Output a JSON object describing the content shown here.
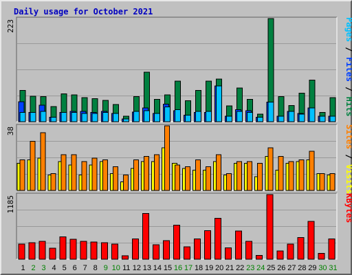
{
  "title": "Daily usage for October 2021",
  "colors": {
    "hits": "#008040",
    "files": "#0040ff",
    "pages": "#00c0ff",
    "visits": "#ffff00",
    "sites": "#ff8000",
    "kbytes": "#ff0000",
    "weekday_tick": "#000000",
    "weekend_tick": "#008000"
  },
  "chart_data": [
    {
      "type": "bar",
      "panel": "hits",
      "ymax_label": "223",
      "ylim": [
        0,
        223
      ],
      "legend": [
        {
          "text": "Pages",
          "color": "#00c0ff"
        },
        {
          "text": " / ",
          "color": "#000000"
        },
        {
          "text": "Files",
          "color": "#0040ff"
        },
        {
          "text": " / ",
          "color": "#000000"
        },
        {
          "text": "Hits",
          "color": "#008040"
        }
      ],
      "categories": [
        "1",
        "2",
        "3",
        "4",
        "5",
        "6",
        "7",
        "8",
        "9",
        "10",
        "11",
        "12",
        "13",
        "14",
        "15",
        "16",
        "17",
        "18",
        "19",
        "20",
        "21",
        "22",
        "23",
        "24",
        "25",
        "26",
        "27",
        "28",
        "29",
        "30",
        "31"
      ],
      "weekend": [
        false,
        true,
        true,
        false,
        false,
        false,
        false,
        false,
        true,
        true,
        false,
        false,
        false,
        false,
        false,
        true,
        true,
        false,
        false,
        false,
        false,
        false,
        true,
        true,
        false,
        false,
        false,
        false,
        false,
        true,
        true
      ],
      "series": [
        {
          "name": "Hits",
          "color": "#008040",
          "values": [
            68,
            55,
            54,
            33,
            60,
            58,
            52,
            50,
            46,
            37,
            12,
            54,
            107,
            48,
            58,
            88,
            45,
            68,
            88,
            92,
            34,
            73,
            48,
            16,
            223,
            54,
            35,
            62,
            90,
            20,
            52
          ]
        },
        {
          "name": "Files",
          "color": "#0040ff",
          "values": [
            43,
            20,
            36,
            10,
            20,
            22,
            22,
            20,
            22,
            18,
            6,
            21,
            30,
            18,
            38,
            24,
            14,
            20,
            20,
            77,
            12,
            26,
            24,
            10,
            42,
            12,
            22,
            18,
            30,
            12,
            12
          ]
        },
        {
          "name": "Pages",
          "color": "#00c0ff",
          "values": [
            20,
            20,
            22,
            10,
            20,
            20,
            18,
            18,
            20,
            18,
            6,
            22,
            24,
            18,
            32,
            26,
            14,
            22,
            22,
            77,
            12,
            22,
            20,
            10,
            42,
            12,
            22,
            16,
            30,
            12,
            12
          ]
        }
      ]
    },
    {
      "type": "bar",
      "panel": "visits",
      "ymax_label": "38",
      "ylim": [
        0,
        38
      ],
      "legend": [
        {
          "text": "Sites",
          "color": "#ff8000"
        },
        {
          "text": " / ",
          "color": "#000000"
        },
        {
          "text": "Visits",
          "color": "#ffff00"
        }
      ],
      "categories": [
        "1",
        "2",
        "3",
        "4",
        "5",
        "6",
        "7",
        "8",
        "9",
        "10",
        "11",
        "12",
        "13",
        "14",
        "15",
        "16",
        "17",
        "18",
        "19",
        "20",
        "21",
        "22",
        "23",
        "24",
        "25",
        "26",
        "27",
        "28",
        "29",
        "30",
        "31"
      ],
      "series": [
        {
          "name": "Visits",
          "color": "#ffff00",
          "values": [
            16,
            18,
            19,
            9,
            17,
            15,
            9,
            15,
            17,
            10,
            5,
            13,
            17,
            17,
            25,
            16,
            13,
            12,
            12,
            17,
            9,
            16,
            16,
            8,
            20,
            12,
            16,
            17,
            18,
            10,
            9
          ]
        },
        {
          "name": "Sites",
          "color": "#ff8000",
          "values": [
            18,
            29,
            34,
            10,
            21,
            21,
            17,
            19,
            18,
            14,
            9,
            18,
            20,
            21,
            38,
            15,
            14,
            18,
            14,
            21,
            10,
            17,
            17,
            16,
            25,
            20,
            17,
            18,
            23,
            10,
            10
          ]
        }
      ]
    },
    {
      "type": "bar",
      "panel": "kbytes",
      "ymax_label": "1185",
      "ylim": [
        0,
        1185
      ],
      "legend": [
        {
          "text": "KBytes",
          "color": "#ff0000"
        }
      ],
      "categories": [
        "1",
        "2",
        "3",
        "4",
        "5",
        "6",
        "7",
        "8",
        "9",
        "10",
        "11",
        "12",
        "13",
        "14",
        "15",
        "16",
        "17",
        "18",
        "19",
        "20",
        "21",
        "22",
        "23",
        "24",
        "25",
        "26",
        "27",
        "28",
        "29",
        "30",
        "31"
      ],
      "series": [
        {
          "name": "KBytes",
          "color": "#ff0000",
          "values": [
            275,
            300,
            325,
            200,
            410,
            365,
            325,
            315,
            300,
            280,
            60,
            370,
            840,
            265,
            340,
            625,
            230,
            375,
            525,
            750,
            210,
            520,
            325,
            70,
            1185,
            150,
            275,
            395,
            695,
            105,
            375
          ]
        }
      ]
    }
  ]
}
